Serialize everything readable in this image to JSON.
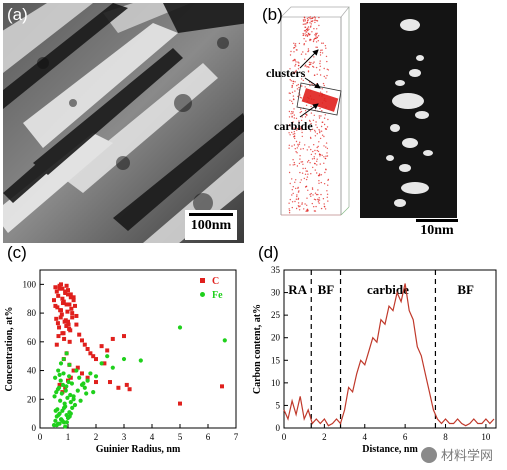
{
  "panels": {
    "a": {
      "label": "(a)",
      "scalebar": "100nm"
    },
    "b": {
      "label": "(b)",
      "annotations": [
        "clusters",
        "carbide"
      ],
      "scalebar": "10nm"
    },
    "c": {
      "label": "(c)"
    },
    "d": {
      "label": "(d)"
    }
  },
  "watermark": {
    "text": "材料学网"
  },
  "chart_data": [
    {
      "type": "scatter",
      "panel": "c",
      "xlabel": "Guinier Radius, nm",
      "ylabel": "Concentration, at%",
      "xlim": [
        0,
        7
      ],
      "ylim": [
        0,
        110
      ],
      "xticks": [
        0,
        1,
        2,
        3,
        4,
        5,
        6,
        7
      ],
      "yticks": [
        0,
        20,
        40,
        60,
        80,
        100
      ],
      "legend": "top-right",
      "series": [
        {
          "name": "C",
          "color": "#e0201d",
          "marker": "square",
          "x": [
            0.55,
            0.6,
            0.65,
            0.7,
            0.75,
            0.8,
            0.85,
            0.9,
            0.95,
            1.0,
            1.05,
            1.1,
            1.15,
            1.2,
            1.25,
            1.3,
            0.5,
            0.62,
            0.72,
            0.82,
            0.92,
            1.02,
            1.12,
            0.58,
            0.68,
            0.78,
            0.88,
            0.98,
            1.08,
            0.64,
            0.74,
            0.84,
            0.94,
            1.04,
            0.7,
            0.8,
            0.9,
            1.0,
            1.1,
            1.2,
            0.55,
            0.75,
            0.95,
            1.15,
            0.66,
            0.86,
            1.06,
            0.6,
            0.8,
            1.0,
            1.3,
            1.4,
            1.5,
            1.6,
            1.7,
            1.8,
            1.9,
            2.0,
            2.2,
            2.4,
            2.6,
            3.0,
            1.5,
            1.7,
            2.0,
            2.3,
            0.7,
            0.9,
            1.1,
            0.8,
            1.0,
            1.2,
            1.35,
            2.5,
            2.8,
            3.1,
            3.2,
            5.0,
            6.5,
            0.85,
            0.95,
            1.05
          ],
          "y": [
            98,
            95,
            92,
            97,
            100,
            90,
            88,
            94,
            99,
            96,
            86,
            93,
            80,
            91,
            85,
            78,
            89,
            84,
            82,
            87,
            75,
            72,
            83,
            76,
            70,
            79,
            74,
            81,
            68,
            73,
            77,
            66,
            71,
            69,
            99,
            97,
            95,
            93,
            91,
            89,
            85,
            82,
            86,
            77,
            64,
            62,
            60,
            58,
            66,
            74,
            72,
            65,
            61,
            58,
            55,
            52,
            50,
            48,
            57,
            54,
            62,
            64,
            38,
            35,
            32,
            45,
            30,
            28,
            35,
            25,
            33,
            40,
            42,
            32,
            28,
            30,
            27,
            17,
            29,
            48,
            52,
            44
          ]
        },
        {
          "name": "Fe",
          "color": "#1fd01c",
          "marker": "circle",
          "x": [
            0.5,
            0.55,
            0.6,
            0.65,
            0.7,
            0.75,
            0.8,
            0.85,
            0.9,
            0.95,
            1.0,
            1.05,
            1.1,
            1.15,
            1.2,
            1.25,
            0.52,
            0.58,
            0.62,
            0.68,
            0.72,
            0.78,
            0.82,
            0.88,
            0.92,
            0.98,
            1.02,
            1.08,
            0.54,
            0.64,
            0.74,
            0.84,
            0.94,
            1.04,
            1.14,
            0.56,
            0.66,
            0.76,
            0.86,
            0.96,
            1.06,
            0.6,
            0.7,
            0.8,
            0.9,
            1.0,
            1.1,
            1.3,
            1.4,
            1.5,
            1.6,
            1.7,
            1.8,
            1.9,
            2.0,
            2.2,
            2.4,
            2.6,
            3.0,
            3.6,
            5.0,
            6.6,
            1.2,
            1.35,
            1.45,
            1.55,
            1.65,
            0.75,
            0.85,
            0.95,
            1.05,
            0.65,
            0.7
          ],
          "y": [
            2,
            5,
            8,
            3,
            10,
            6,
            12,
            4,
            15,
            9,
            7,
            11,
            18,
            14,
            20,
            16,
            22,
            25,
            13,
            28,
            19,
            24,
            30,
            17,
            26,
            21,
            32,
            23,
            35,
            27,
            33,
            38,
            29,
            36,
            31,
            12,
            9,
            6,
            14,
            4,
            8,
            2,
            3,
            5,
            1,
            7,
            10,
            40,
            35,
            30,
            28,
            33,
            38,
            25,
            36,
            45,
            50,
            42,
            48,
            47,
            70,
            61,
            22,
            26,
            19,
            31,
            24,
            45,
            48,
            52,
            44,
            40,
            37
          ]
        }
      ]
    },
    {
      "type": "line",
      "panel": "d",
      "title": "",
      "xlabel": "Distance, nm",
      "ylabel": "Carbon content, at%",
      "xlim": [
        0,
        10.5
      ],
      "ylim": [
        0,
        35
      ],
      "xticks": [
        0,
        2,
        4,
        6,
        8,
        10
      ],
      "yticks": [
        0,
        5,
        10,
        15,
        20,
        25,
        30,
        35
      ],
      "region_labels": [
        "RA",
        "BF",
        "carbide",
        "BF"
      ],
      "dividers_x": [
        1.35,
        2.8,
        7.5
      ],
      "series": [
        {
          "name": "",
          "color": "#c0392b",
          "x": [
            0,
            0.2,
            0.4,
            0.6,
            0.8,
            1.0,
            1.2,
            1.4,
            1.6,
            1.8,
            2.0,
            2.2,
            2.4,
            2.6,
            2.8,
            3.0,
            3.2,
            3.4,
            3.6,
            3.8,
            4.0,
            4.2,
            4.4,
            4.6,
            4.8,
            5.0,
            5.2,
            5.4,
            5.6,
            5.8,
            6.0,
            6.2,
            6.4,
            6.6,
            6.8,
            7.0,
            7.2,
            7.4,
            7.6,
            7.8,
            8.0,
            8.2,
            8.4,
            8.6,
            8.8,
            9.0,
            9.2,
            9.4,
            9.6,
            9.8,
            10.0,
            10.2,
            10.4
          ],
          "y": [
            4,
            2,
            6,
            3,
            7,
            2,
            4,
            1,
            2,
            1,
            2,
            0.5,
            1,
            2,
            1,
            4,
            9,
            8,
            12,
            15,
            14,
            17,
            20,
            19,
            24,
            23,
            27,
            26,
            30,
            28,
            32,
            26,
            24,
            18,
            16,
            12,
            8,
            4,
            2,
            1,
            2,
            1,
            1,
            2,
            1,
            0.5,
            1,
            2,
            1,
            1,
            2,
            1,
            2
          ]
        }
      ]
    }
  ]
}
